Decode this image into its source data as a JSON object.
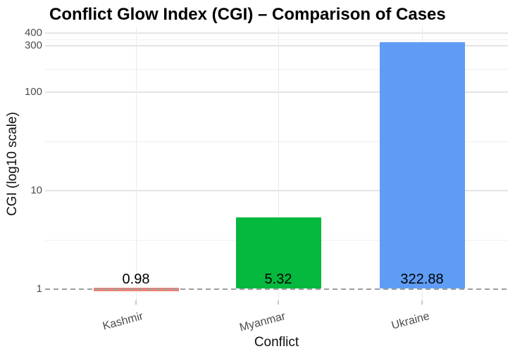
{
  "title": "Conflict Glow Index (CGI) – Comparison of Cases",
  "chart_data": {
    "type": "bar",
    "title": "Conflict Glow Index (CGI) – Comparison of Cases",
    "xlabel": "Conflict",
    "ylabel": "CGI (log10 scale)",
    "y_scale": "log10",
    "categories": [
      "Kashmir",
      "Myanmar",
      "Ukraine"
    ],
    "values": [
      0.98,
      5.32,
      322.88
    ],
    "value_labels": [
      "0.98",
      "5.32",
      "322.88"
    ],
    "bar_colors": [
      "#ea8378",
      "#05b83e",
      "#5f9cf6"
    ],
    "y_ticks": [
      400,
      300,
      100,
      10,
      1
    ],
    "y_tick_labels": [
      "400",
      "300",
      "100",
      "10",
      "1"
    ],
    "y_minor_gridlines": [
      346.4,
      173.2,
      31.62,
      3.162
    ],
    "ylim": [
      0.8,
      490
    ],
    "reference_line": {
      "value": 1,
      "style": "dashed",
      "color": "#9e9e9e"
    },
    "grid": true,
    "legend": false,
    "background": "#ffffff",
    "axis_text_color": "#4d4d4d"
  }
}
